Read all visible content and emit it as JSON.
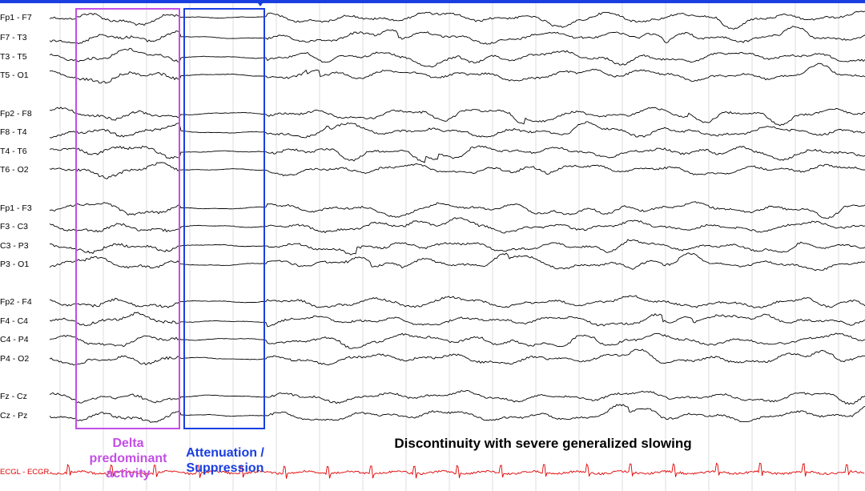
{
  "channels": {
    "group1": [
      "Fp1 - F7",
      "F7 - T3",
      "T3 - T5",
      "T5 - O1"
    ],
    "group2": [
      "Fp2 - F8",
      "F8 - T4",
      "T4 - T6",
      "T6 - O2"
    ],
    "group3": [
      "Fp1 - F3",
      "F3 - C3",
      "C3 - P3",
      "P3 - O1"
    ],
    "group4": [
      "Fp2 - F4",
      "F4 - C4",
      "C4 - P4",
      "P4 - O2"
    ],
    "group5": [
      "Fz - Cz",
      "Cz - Pz"
    ],
    "ecg": "ECGL - ECGR"
  },
  "annotations": {
    "delta": "Delta predominant activity",
    "attenuation": "Attenuation / Suppression",
    "discontinuity": "Discontinuity with severe generalized slowing"
  },
  "colors": {
    "trace": "#000000",
    "ecg": "#e00000",
    "delta_box": "#c24fe6",
    "attenuation_box": "#1a3fe0",
    "grid": "#c8c8c8"
  }
}
